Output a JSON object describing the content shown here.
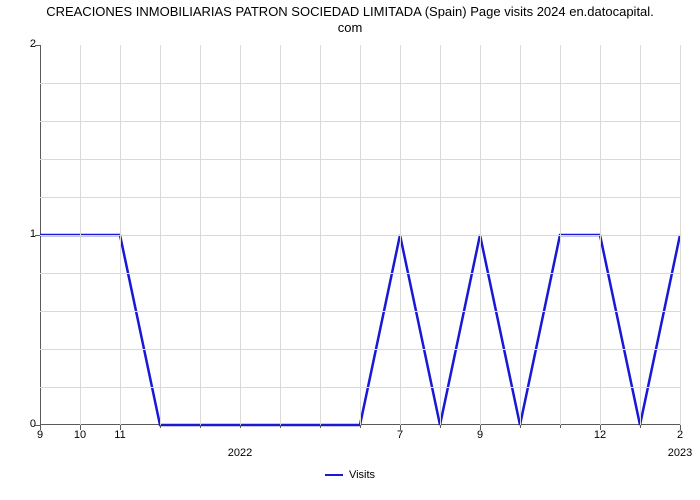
{
  "chart": {
    "type": "line",
    "title_line1": "CREACIONES INMOBILIARIAS PATRON SOCIEDAD LIMITADA (Spain) Page visits 2024 en.datocapital.",
    "title_line2": "com",
    "title_fontsize": 13,
    "title_color": "#000000",
    "background_color": "#ffffff",
    "grid_color": "#d9d9d9",
    "axis_color": "#5a5a5a",
    "line_color": "#1818d6",
    "line_width": 2.5,
    "legend_label": "Visits",
    "y": {
      "min": 0,
      "max": 2,
      "ticks": [
        0,
        1,
        2
      ],
      "minor_gridlines": 10,
      "label_fontsize": 11
    },
    "x": {
      "major_labels": [
        "9",
        "10",
        "11",
        "",
        "",
        "",
        "",
        "",
        "",
        "7",
        "",
        "9",
        "",
        "",
        "12",
        "",
        "2"
      ],
      "year_markers": [
        {
          "label": "2022",
          "index": 5
        },
        {
          "label": "2023",
          "index": 16
        }
      ],
      "count": 17,
      "label_fontsize": 11
    },
    "series": {
      "name": "Visits",
      "values": [
        1,
        1,
        1,
        0,
        0,
        0,
        0,
        0,
        0,
        1,
        0,
        1,
        0,
        1,
        1,
        0,
        1
      ]
    }
  }
}
